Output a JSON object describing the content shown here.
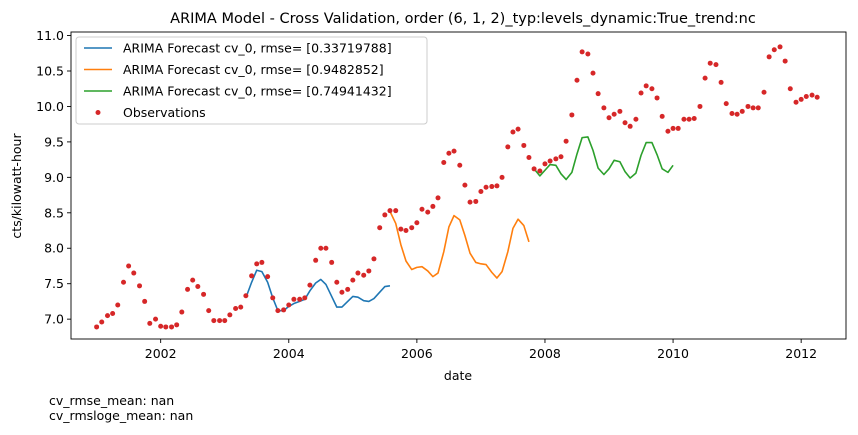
{
  "footer": {
    "line1": "cv_rmse_mean: nan",
    "line2": "cv_rmsloge_mean: nan"
  },
  "chart_data": {
    "type": "line",
    "title": "ARIMA Model - Cross Validation, order (6, 1, 2)_typ:levels_dynamic:True_trend:nc",
    "xlabel": "date",
    "ylabel": "cts/kilowatt-hour",
    "xlim": [
      2000.6,
      2012.7
    ],
    "ylim": [
      6.72,
      11.05
    ],
    "grid": false,
    "legend_position": "top-left",
    "x_ticks": [
      2002,
      2004,
      2006,
      2008,
      2010,
      2012
    ],
    "x_tick_labels": [
      "2002",
      "2004",
      "2006",
      "2008",
      "2010",
      "2012"
    ],
    "y_ticks": [
      7.0,
      7.5,
      8.0,
      8.5,
      9.0,
      9.5,
      10.0,
      10.5,
      11.0
    ],
    "y_tick_labels": [
      "7.0",
      "7.5",
      "8.0",
      "8.5",
      "9.0",
      "9.5",
      "10.0",
      "10.5",
      "11.0"
    ],
    "series": [
      {
        "name": "ARIMA Forecast cv_0, rmse= [0.33719788]",
        "type": "line",
        "color": "#1f77b4",
        "x": [
          2003.33,
          2003.42,
          2003.5,
          2003.58,
          2003.67,
          2003.75,
          2003.83,
          2003.92,
          2004.0,
          2004.08,
          2004.17,
          2004.25,
          2004.33,
          2004.42,
          2004.5,
          2004.58,
          2004.67,
          2004.75,
          2004.83,
          2004.92,
          2005.0,
          2005.08,
          2005.17,
          2005.25,
          2005.33,
          2005.42,
          2005.5,
          2005.58
        ],
        "y": [
          7.3,
          7.52,
          7.69,
          7.67,
          7.52,
          7.3,
          7.12,
          7.12,
          7.18,
          7.22,
          7.25,
          7.28,
          7.4,
          7.51,
          7.56,
          7.49,
          7.32,
          7.17,
          7.17,
          7.25,
          7.32,
          7.31,
          7.26,
          7.25,
          7.29,
          7.38,
          7.46,
          7.47
        ]
      },
      {
        "name": "ARIMA Forecast cv_0, rmse= [0.9482852]",
        "type": "line",
        "color": "#ff7f0e",
        "x": [
          2005.58,
          2005.67,
          2005.75,
          2005.83,
          2005.92,
          2006.0,
          2006.08,
          2006.17,
          2006.25,
          2006.33,
          2006.42,
          2006.5,
          2006.58,
          2006.67,
          2006.75,
          2006.83,
          2006.92,
          2007.0,
          2007.08,
          2007.17,
          2007.25,
          2007.33,
          2007.42,
          2007.5,
          2007.58,
          2007.67,
          2007.75
        ],
        "y": [
          8.52,
          8.35,
          8.05,
          7.82,
          7.7,
          7.73,
          7.74,
          7.68,
          7.6,
          7.65,
          7.95,
          8.3,
          8.46,
          8.4,
          8.18,
          7.93,
          7.8,
          7.78,
          7.77,
          7.66,
          7.58,
          7.67,
          7.95,
          8.28,
          8.41,
          8.32,
          8.09
        ]
      },
      {
        "name": "ARIMA Forecast cv_0, rmse= [0.74941432]",
        "type": "line",
        "color": "#2ca02c",
        "x": [
          2007.83,
          2007.92,
          2008.0,
          2008.08,
          2008.17,
          2008.25,
          2008.33,
          2008.42,
          2008.5,
          2008.58,
          2008.67,
          2008.75,
          2008.83,
          2008.92,
          2009.0,
          2009.08,
          2009.17,
          2009.25,
          2009.33,
          2009.42,
          2009.5,
          2009.58,
          2009.67,
          2009.75,
          2009.83,
          2009.92,
          2010.0
        ],
        "y": [
          9.12,
          9.02,
          9.1,
          9.18,
          9.17,
          9.05,
          8.97,
          9.07,
          9.33,
          9.56,
          9.57,
          9.38,
          9.13,
          9.04,
          9.12,
          9.24,
          9.22,
          9.08,
          8.99,
          9.06,
          9.31,
          9.49,
          9.49,
          9.32,
          9.12,
          9.07,
          9.17
        ]
      },
      {
        "name": "Observations",
        "type": "scatter",
        "color": "#d62728",
        "x": [
          2001.0,
          2001.08,
          2001.17,
          2001.25,
          2001.33,
          2001.42,
          2001.5,
          2001.58,
          2001.67,
          2001.75,
          2001.83,
          2001.92,
          2002.0,
          2002.08,
          2002.17,
          2002.25,
          2002.33,
          2002.42,
          2002.5,
          2002.58,
          2002.67,
          2002.75,
          2002.83,
          2002.92,
          2003.0,
          2003.08,
          2003.17,
          2003.25,
          2003.33,
          2003.42,
          2003.5,
          2003.58,
          2003.67,
          2003.75,
          2003.83,
          2003.92,
          2004.0,
          2004.08,
          2004.17,
          2004.25,
          2004.33,
          2004.42,
          2004.5,
          2004.58,
          2004.67,
          2004.75,
          2004.83,
          2004.92,
          2005.0,
          2005.08,
          2005.17,
          2005.25,
          2005.33,
          2005.42,
          2005.5,
          2005.58,
          2005.67,
          2005.75,
          2005.83,
          2005.92,
          2006.0,
          2006.08,
          2006.17,
          2006.25,
          2006.33,
          2006.42,
          2006.5,
          2006.58,
          2006.67,
          2006.75,
          2006.83,
          2006.92,
          2007.0,
          2007.08,
          2007.17,
          2007.25,
          2007.33,
          2007.42,
          2007.5,
          2007.58,
          2007.67,
          2007.75,
          2007.83,
          2007.92,
          2008.0,
          2008.08,
          2008.17,
          2008.25,
          2008.33,
          2008.42,
          2008.5,
          2008.58,
          2008.67,
          2008.75,
          2008.83,
          2008.92,
          2009.0,
          2009.08,
          2009.17,
          2009.25,
          2009.33,
          2009.42,
          2009.5,
          2009.58,
          2009.67,
          2009.75,
          2009.83,
          2009.92,
          2010.0,
          2010.08,
          2010.17,
          2010.25,
          2010.33,
          2010.42,
          2010.5,
          2010.58,
          2010.67,
          2010.75,
          2010.83,
          2010.92,
          2011.0,
          2011.08,
          2011.17,
          2011.25,
          2011.33,
          2011.42,
          2011.5,
          2011.58,
          2011.67,
          2011.75,
          2011.83,
          2011.92,
          2012.0,
          2012.08,
          2012.17,
          2012.25
        ],
        "y": [
          6.89,
          6.96,
          7.05,
          7.08,
          7.2,
          7.52,
          7.75,
          7.65,
          7.47,
          7.25,
          6.94,
          7.0,
          6.9,
          6.89,
          6.89,
          6.92,
          7.1,
          7.42,
          7.55,
          7.46,
          7.35,
          7.12,
          6.98,
          6.98,
          6.98,
          7.06,
          7.15,
          7.17,
          7.33,
          7.61,
          7.78,
          7.8,
          7.6,
          7.3,
          7.12,
          7.13,
          7.2,
          7.28,
          7.28,
          7.3,
          7.48,
          7.83,
          8.0,
          8.0,
          7.8,
          7.52,
          7.38,
          7.42,
          7.55,
          7.65,
          7.62,
          7.68,
          7.85,
          8.29,
          8.47,
          8.53,
          8.53,
          8.27,
          8.25,
          8.29,
          8.36,
          8.55,
          8.51,
          8.59,
          8.71,
          9.21,
          9.34,
          9.37,
          9.17,
          8.89,
          8.65,
          8.66,
          8.8,
          8.86,
          8.87,
          8.88,
          9.0,
          9.43,
          9.64,
          9.68,
          9.45,
          9.28,
          9.12,
          9.09,
          9.19,
          9.23,
          9.26,
          9.29,
          9.51,
          9.88,
          10.37,
          10.77,
          10.74,
          10.47,
          10.18,
          9.98,
          9.84,
          9.89,
          9.93,
          9.77,
          9.72,
          9.82,
          10.19,
          10.29,
          10.25,
          10.12,
          9.86,
          9.65,
          9.69,
          9.69,
          9.82,
          9.82,
          9.83,
          10.0,
          10.4,
          10.61,
          10.59,
          10.34,
          10.04,
          9.9,
          9.89,
          9.93,
          10.0,
          9.98,
          9.98,
          10.2,
          10.7,
          10.8,
          10.84,
          10.64,
          10.25,
          10.06,
          10.1,
          10.14,
          10.16,
          10.13
        ]
      }
    ]
  }
}
